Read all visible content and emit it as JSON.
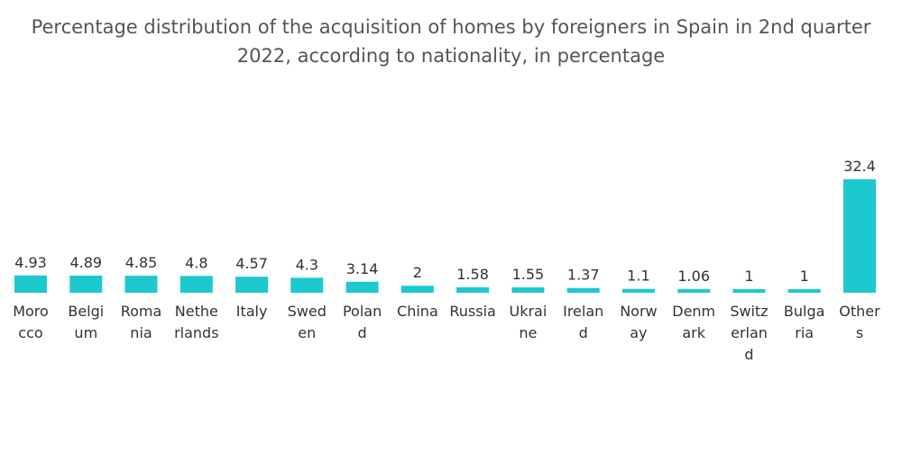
{
  "chart_data": {
    "type": "bar",
    "title": "Percentage distribution of the acquisition of homes by foreigners in Spain in 2nd quarter 2022, according to nationality, in percentage",
    "categories": [
      "Morocco",
      "Belgium",
      "Romania",
      "Netherlands",
      "Italy",
      "Sweden",
      "Poland",
      "China",
      "Russia",
      "Ukraine",
      "Ireland",
      "Norway",
      "Denmark",
      "Switzerland",
      "Bulgaria",
      "Others"
    ],
    "category_label_lines": [
      [
        "Moro",
        "cco"
      ],
      [
        "Belgi",
        "um"
      ],
      [
        "Roma",
        "nia"
      ],
      [
        "Nethe",
        "rlands"
      ],
      [
        "Italy"
      ],
      [
        "Swed",
        "en"
      ],
      [
        "Polan",
        "d"
      ],
      [
        "China"
      ],
      [
        "Russia"
      ],
      [
        "Ukrai",
        "ne"
      ],
      [
        "Irelan",
        "d"
      ],
      [
        "Norw",
        "ay"
      ],
      [
        "Denm",
        "ark"
      ],
      [
        "Switz",
        "erlan",
        "d"
      ],
      [
        "Bulga",
        "ria"
      ],
      [
        "Other",
        "s"
      ]
    ],
    "values": [
      4.93,
      4.89,
      4.85,
      4.8,
      4.57,
      4.3,
      3.14,
      2,
      1.58,
      1.55,
      1.37,
      1.1,
      1.06,
      1,
      1,
      32.4
    ],
    "value_labels": [
      "4.93",
      "4.89",
      "4.85",
      "4.8",
      "4.57",
      "4.3",
      "3.14",
      "2",
      "1.58",
      "1.55",
      "1.37",
      "1.1",
      "1.06",
      "1",
      "1",
      "32.4"
    ],
    "ylim": [
      0,
      32.4
    ],
    "bar_color": "#1ec8cf",
    "grid": false,
    "legend": "none"
  }
}
